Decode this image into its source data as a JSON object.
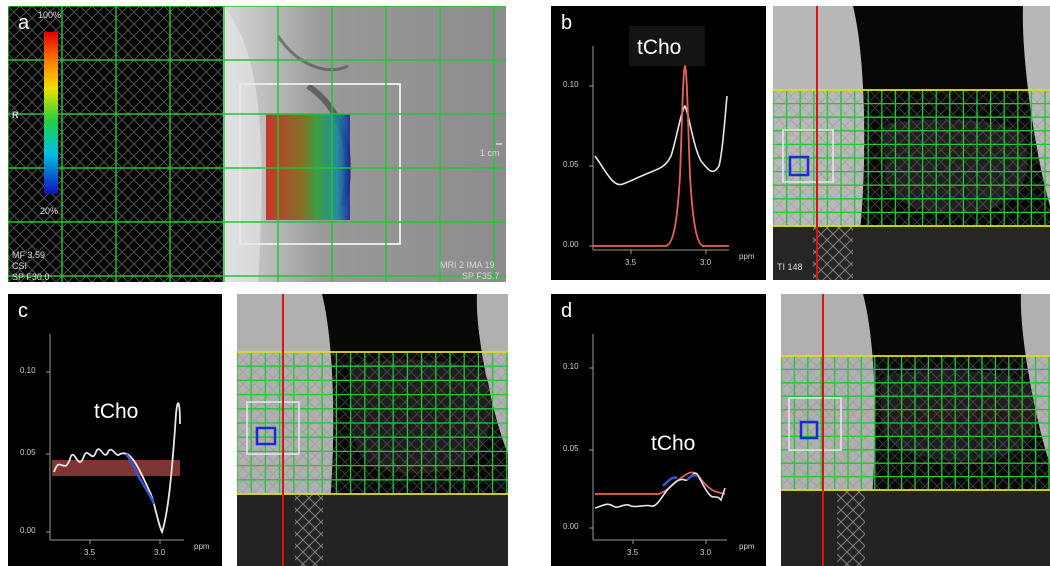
{
  "panels": {
    "a": {
      "label": "a",
      "scale_top": "100%",
      "scale_bottom": "20%",
      "orient": "R",
      "scale_bar": "1 cm",
      "overlay_left_1": "MF 3.59",
      "overlay_left_2": "CSI",
      "overlay_left_3": "SP F30.0",
      "overlay_right_1": "MRI 2 IMA 19",
      "overlay_right_2": "SP F35.7"
    },
    "b": {
      "label": "b",
      "peak_label": "tCho",
      "yticks": [
        "0.10",
        "0.05",
        "0.00"
      ],
      "xticks": [
        "3.5",
        "3.0"
      ],
      "unit": "ppm",
      "image_overlay": "TI 148"
    },
    "c": {
      "label": "c",
      "peak_label": "tCho",
      "yticks": [
        "0.10",
        "0.05",
        "0.00"
      ],
      "xticks": [
        "3.5",
        "3.0"
      ],
      "unit": "ppm"
    },
    "d": {
      "label": "d",
      "peak_label": "tCho",
      "yticks": [
        "0.10",
        "0.05",
        "0.00"
      ],
      "xticks": [
        "3.5",
        "3.0"
      ],
      "unit": "ppm"
    }
  },
  "colors": {
    "grid": "#22c534",
    "band": "#e4dc1c",
    "voxel": "#1a2bd6",
    "fit": "#e8605a",
    "cursor": "#d81414"
  }
}
